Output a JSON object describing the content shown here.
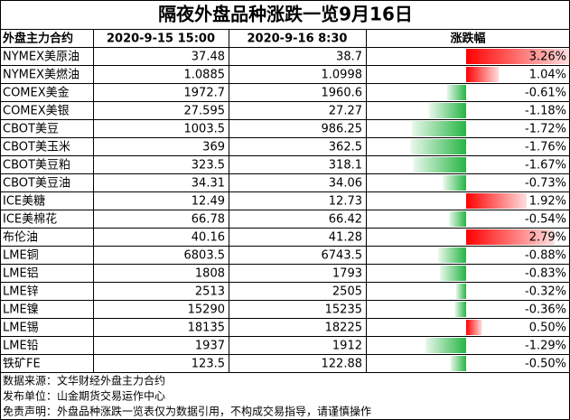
{
  "title": "隔夜外盘品种涨跌一览9月16日",
  "header": [
    "外盘主力合约",
    "2020-9-15 15:00",
    "2020-9-16 8:30",
    "涨跌幅"
  ],
  "rows": [
    {
      "name": "NYMEX美原油",
      "prev": "37.48",
      "curr": "38.7",
      "change": {
        "value": 3.26,
        "label": "3.26%"
      }
    },
    {
      "name": "NYMEX美燃油",
      "prev": "1.0885",
      "curr": "1.0998",
      "change": {
        "value": 1.04,
        "label": "1.04%"
      }
    },
    {
      "name": "COMEX美金",
      "prev": "1972.7",
      "curr": "1960.6",
      "change": {
        "value": -0.61,
        "label": "-0.61%"
      }
    },
    {
      "name": "COMEX美银",
      "prev": "27.595",
      "curr": "27.27",
      "change": {
        "value": -1.18,
        "label": "-1.18%"
      }
    },
    {
      "name": "CBOT美豆",
      "prev": "1003.5",
      "curr": "986.25",
      "change": {
        "value": -1.72,
        "label": "-1.72%"
      }
    },
    {
      "name": "CBOT美玉米",
      "prev": "369",
      "curr": "362.5",
      "change": {
        "value": -1.76,
        "label": "-1.76%"
      }
    },
    {
      "name": "CBOT美豆粕",
      "prev": "323.5",
      "curr": "318.1",
      "change": {
        "value": -1.67,
        "label": "-1.67%"
      }
    },
    {
      "name": "CBOT美豆油",
      "prev": "34.31",
      "curr": "34.06",
      "change": {
        "value": -0.73,
        "label": "-0.73%"
      }
    },
    {
      "name": "ICE美糖",
      "prev": "12.49",
      "curr": "12.73",
      "change": {
        "value": 1.92,
        "label": "1.92%"
      }
    },
    {
      "name": "ICE美棉花",
      "prev": "66.78",
      "curr": "66.42",
      "change": {
        "value": -0.54,
        "label": "-0.54%"
      }
    },
    {
      "name": "布伦油",
      "prev": "40.16",
      "curr": "41.28",
      "change": {
        "value": 2.79,
        "label": "2.79%"
      }
    },
    {
      "name": "LME铜",
      "prev": "6803.5",
      "curr": "6743.5",
      "change": {
        "value": -0.88,
        "label": "-0.88%"
      }
    },
    {
      "name": "LME铝",
      "prev": "1808",
      "curr": "1793",
      "change": {
        "value": -0.83,
        "label": "-0.83%"
      }
    },
    {
      "name": "LME锌",
      "prev": "2513",
      "curr": "2505",
      "change": {
        "value": -0.32,
        "label": "-0.32%"
      }
    },
    {
      "name": "LME镍",
      "prev": "15290",
      "curr": "15235",
      "change": {
        "value": -0.36,
        "label": "-0.36%"
      }
    },
    {
      "name": "LME锡",
      "prev": "18135",
      "curr": "18225",
      "change": {
        "value": 0.5,
        "label": "0.50%"
      }
    },
    {
      "name": "LME铅",
      "prev": "1937",
      "curr": "1912",
      "change": {
        "value": -1.29,
        "label": "-1.29%"
      }
    },
    {
      "name": "铁矿FE",
      "prev": "123.5",
      "curr": "122.88",
      "change": {
        "value": -0.5,
        "label": "-0.50%"
      }
    }
  ],
  "footer": [
    "数据来源：文华财经外盘主力合约",
    "发布单位：山金期货交易运作中心",
    "免责声明：外盘品种涨跌一览表仅为数据引用，不构成交易指导，请谨慎操作"
  ]
}
